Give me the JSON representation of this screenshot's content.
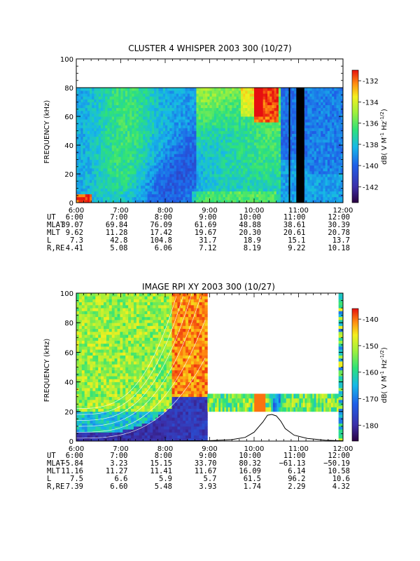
{
  "chart_data": [
    {
      "type": "heatmap",
      "title": "CLUSTER 4 WHISPER 2003 300 (10/27)",
      "ylabel": "FREQUENCY (kHz)",
      "ylim": [
        0,
        100
      ],
      "yticks": [
        0,
        20,
        40,
        60,
        80,
        100
      ],
      "x_ticks": [
        "6:00",
        "7:00",
        "8:00",
        "9:00",
        "10:00",
        "11:00",
        "12:00"
      ],
      "colorbar": {
        "label": "dB( V M⁻¹ Hz⁻¹ᐟ²)",
        "label_main": "dB( V M",
        "label_sup1": "-1",
        "label_mid": " Hz",
        "label_sup2": "-1/2",
        "label_end": ")",
        "ticks": [
          -132,
          -134,
          -136,
          -138,
          -140,
          -142
        ],
        "range": [
          -143.5,
          -131
        ]
      },
      "ephemeris": {
        "labels": [
          "UT",
          "MLAT",
          "MLT",
          "L",
          "R,RE"
        ],
        "rows": [
          [
            "6:00",
            "7:00",
            "8:00",
            "9:00",
            "10:00",
            "11:00",
            "12:00"
          ],
          [
            "39.07",
            "69.84",
            "76.09",
            "61.69",
            "48.88",
            "38.61",
            "30.39"
          ],
          [
            "9.62",
            "11.28",
            "17.42",
            "19.67",
            "20.30",
            "20.61",
            "20.78"
          ],
          [
            "7.3",
            "42.8",
            "104.8",
            "31.7",
            "18.9",
            "15.1",
            "13.7"
          ],
          [
            "4.41",
            "5.08",
            "6.06",
            "7.12",
            "8.19",
            "9.22",
            "10.18"
          ]
        ]
      },
      "data_gaps_hours": [
        [
          10.78,
          10.81
        ],
        [
          10.95,
          11.13
        ]
      ],
      "upper_frequency_limit_khz": 80
    },
    {
      "type": "heatmap",
      "title": "IMAGE RPI XY 2003 300 (10/27)",
      "ylabel": "FREQUENCY (kHz)",
      "ylim": [
        0,
        100
      ],
      "yticks": [
        0,
        20,
        40,
        60,
        80,
        100
      ],
      "x_ticks": [
        "6:00",
        "7:00",
        "8:00",
        "9:00",
        "10:00",
        "11:00",
        "12:00"
      ],
      "colorbar": {
        "label_main": "dB( V M",
        "label_sup1": "-1",
        "label_mid": " Hz",
        "label_sup2": "-1/2",
        "label_end": ")",
        "ticks": [
          -140,
          -150,
          -160,
          -170,
          -180
        ],
        "range": [
          -186,
          -136
        ]
      },
      "ephemeris": {
        "labels": [
          "UT",
          "MLAT",
          "MLT",
          "L",
          "R,RE"
        ],
        "rows": [
          [
            "6:00",
            "7:00",
            "8:00",
            "9:00",
            "10:00",
            "11:00",
            "12:00"
          ],
          [
            "−5.84",
            "3.23",
            "15.15",
            "33.70",
            "80.32",
            "−61.13",
            "−50.19"
          ],
          [
            "11.16",
            "11.27",
            "11.41",
            "11.67",
            "16.09",
            "6.14",
            "10.58"
          ],
          [
            "7.5",
            "6.6",
            "5.9",
            "5.7",
            "61.5",
            "96.2",
            "10.6"
          ],
          [
            "7.39",
            "6.60",
            "5.48",
            "3.93",
            "1.74",
            "2.29",
            "4.32"
          ]
        ]
      },
      "sampled_ranges": [
        {
          "t": [
            6.0,
            8.95
          ],
          "f": [
            0,
            100
          ]
        },
        {
          "t": [
            8.95,
            11.9
          ],
          "f": [
            20,
            32
          ]
        }
      ],
      "plasma_frequency_curve": {
        "x": [
          8.0,
          9.0,
          9.5,
          9.8,
          10.0,
          10.2,
          10.3,
          10.4,
          10.5,
          10.6,
          10.7,
          10.9,
          11.2,
          11.6,
          12.0
        ],
        "y": [
          0.1,
          0.3,
          1.0,
          2.5,
          6.0,
          13.0,
          17.5,
          18.0,
          17.0,
          13.5,
          8.5,
          4.0,
          1.8,
          0.6,
          0.2
        ]
      }
    }
  ]
}
